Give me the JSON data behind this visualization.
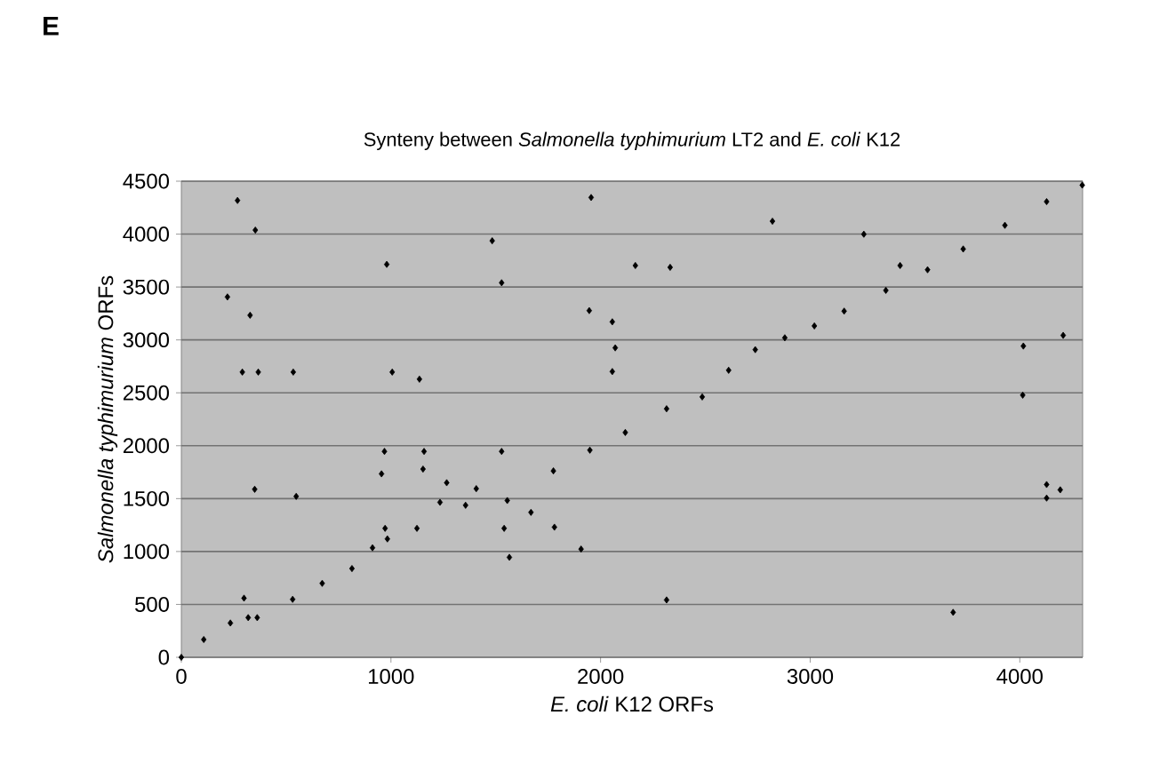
{
  "chart_data": {
    "type": "scatter",
    "title": "Synteny between *Salmonella typhimurium* LT2 and *E. coli* K12",
    "xlabel": "*E. coli* K12 ORFs",
    "ylabel": "*Salmonella typhimurium* ORFs",
    "annotations": [
      "E"
    ],
    "x": [
      0,
      107,
      234,
      319,
      362,
      531,
      672,
      814,
      912,
      983,
      1124,
      1153,
      1266,
      1407,
      1555,
      1668,
      1780,
      1775,
      1949,
      2118,
      2315,
      2485,
      2611,
      2738,
      2879,
      3020,
      3162,
      3361,
      3560,
      3730,
      3929,
      4128,
      4298,
      268,
      353,
      220,
      328,
      291,
      367,
      534,
      350,
      548,
      299,
      980,
      1006,
      1136,
      969,
      955,
      972,
      1158,
      1234,
      1356,
      1483,
      1528,
      1528,
      1540,
      1565,
      1955,
      2820,
      2166,
      2332,
      1946,
      2056,
      2070,
      2056,
      1907,
      2315,
      3256,
      3429,
      4017,
      4207,
      4014,
      4128,
      4128,
      4193,
      3682
    ],
    "values": [
      0,
      168,
      324,
      375,
      375,
      548,
      699,
      839,
      1035,
      1119,
      1219,
      1779,
      1650,
      1594,
      1482,
      1370,
      1230,
      1762,
      1958,
      2125,
      2349,
      2461,
      2713,
      2908,
      3020,
      3132,
      3272,
      3468,
      3663,
      3859,
      4083,
      4307,
      4463,
      4318,
      4038,
      3406,
      3233,
      2696,
      2696,
      2696,
      1588,
      1521,
      559,
      3714,
      2696,
      2629,
      1946,
      1734,
      1219,
      1946,
      1465,
      1437,
      3937,
      3540,
      1946,
      1219,
      945,
      4346,
      4122,
      3703,
      3686,
      3277,
      3171,
      2925,
      2701,
      1023,
      542,
      3999,
      3703,
      2942,
      3043,
      2478,
      1633,
      1505,
      1583,
      425
    ],
    "color": "#000000",
    "marker": "diamond",
    "grid": "y",
    "xlim": [
      0,
      4300
    ],
    "ylim": [
      0,
      4500
    ],
    "xticks": [
      0,
      1000,
      2000,
      3000,
      4000
    ],
    "yticks": [
      0,
      500,
      1000,
      1500,
      2000,
      2500,
      3000,
      3500,
      4000,
      4500
    ]
  }
}
